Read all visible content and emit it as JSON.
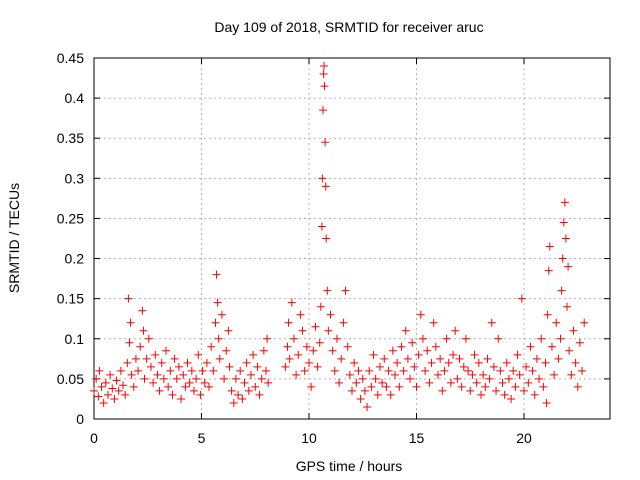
{
  "chart_data": {
    "type": "scatter",
    "title": "Day 109 of 2018, SRMTID for receiver aruc",
    "xlabel": "GPS time / hours",
    "ylabel": "SRMTID / TECUs",
    "xlim": [
      0,
      24
    ],
    "ylim": [
      0,
      0.45
    ],
    "grid": true,
    "marker": "+",
    "x_ticks": [
      0,
      5,
      10,
      15,
      20
    ],
    "x_tick_labels": [
      "0",
      "5",
      "10",
      "15",
      "20"
    ],
    "y_ticks": [
      0,
      0.05,
      0.1,
      0.15,
      0.2,
      0.25,
      0.3,
      0.35,
      0.4,
      0.45
    ],
    "y_tick_labels": [
      "0",
      "0.05",
      "0.1",
      "0.15",
      "0.2",
      "0.25",
      "0.3",
      "0.35",
      "0.4",
      "0.45"
    ],
    "series": [
      {
        "name": "SRMTID",
        "color": "#ff0000",
        "points": [
          [
            0.0,
            0.035
          ],
          [
            0.1,
            0.05
          ],
          [
            0.2,
            0.028
          ],
          [
            0.25,
            0.06
          ],
          [
            0.35,
            0.04
          ],
          [
            0.45,
            0.02
          ],
          [
            0.55,
            0.045
          ],
          [
            0.65,
            0.03
          ],
          [
            0.75,
            0.055
          ],
          [
            0.85,
            0.038
          ],
          [
            0.95,
            0.025
          ],
          [
            1.05,
            0.048
          ],
          [
            1.15,
            0.035
          ],
          [
            1.25,
            0.06
          ],
          [
            1.35,
            0.042
          ],
          [
            1.45,
            0.03
          ],
          [
            1.55,
            0.07
          ],
          [
            1.6,
            0.15
          ],
          [
            1.65,
            0.095
          ],
          [
            1.7,
            0.12
          ],
          [
            1.75,
            0.055
          ],
          [
            1.85,
            0.04
          ],
          [
            1.95,
            0.075
          ],
          [
            2.05,
            0.06
          ],
          [
            2.15,
            0.09
          ],
          [
            2.25,
            0.135
          ],
          [
            2.3,
            0.11
          ],
          [
            2.35,
            0.05
          ],
          [
            2.45,
            0.075
          ],
          [
            2.55,
            0.1
          ],
          [
            2.65,
            0.065
          ],
          [
            2.75,
            0.045
          ],
          [
            2.85,
            0.08
          ],
          [
            2.95,
            0.055
          ],
          [
            3.05,
            0.035
          ],
          [
            3.15,
            0.07
          ],
          [
            3.25,
            0.05
          ],
          [
            3.35,
            0.085
          ],
          [
            3.45,
            0.04
          ],
          [
            3.55,
            0.06
          ],
          [
            3.65,
            0.03
          ],
          [
            3.75,
            0.075
          ],
          [
            3.85,
            0.05
          ],
          [
            3.95,
            0.065
          ],
          [
            4.05,
            0.025
          ],
          [
            4.15,
            0.055
          ],
          [
            4.25,
            0.04
          ],
          [
            4.35,
            0.07
          ],
          [
            4.45,
            0.045
          ],
          [
            4.55,
            0.06
          ],
          [
            4.65,
            0.035
          ],
          [
            4.75,
            0.05
          ],
          [
            4.85,
            0.08
          ],
          [
            4.95,
            0.03
          ],
          [
            5.05,
            0.06
          ],
          [
            5.15,
            0.045
          ],
          [
            5.25,
            0.07
          ],
          [
            5.35,
            0.04
          ],
          [
            5.45,
            0.09
          ],
          [
            5.55,
            0.06
          ],
          [
            5.65,
            0.12
          ],
          [
            5.7,
            0.18
          ],
          [
            5.75,
            0.145
          ],
          [
            5.8,
            0.1
          ],
          [
            5.85,
            0.075
          ],
          [
            5.95,
            0.13
          ],
          [
            6.05,
            0.05
          ],
          [
            6.15,
            0.085
          ],
          [
            6.25,
            0.11
          ],
          [
            6.3,
            0.065
          ],
          [
            6.4,
            0.035
          ],
          [
            6.5,
            0.02
          ],
          [
            6.6,
            0.05
          ],
          [
            6.7,
            0.03
          ],
          [
            6.8,
            0.06
          ],
          [
            6.9,
            0.025
          ],
          [
            7.0,
            0.045
          ],
          [
            7.1,
            0.07
          ],
          [
            7.2,
            0.035
          ],
          [
            7.3,
            0.055
          ],
          [
            7.4,
            0.08
          ],
          [
            7.5,
            0.04
          ],
          [
            7.6,
            0.065
          ],
          [
            7.7,
            0.03
          ],
          [
            7.8,
            0.05
          ],
          [
            7.9,
            0.085
          ],
          [
            8.0,
            0.06
          ],
          [
            8.05,
            0.1
          ],
          [
            8.1,
            0.045
          ],
          [
            8.9,
            0.065
          ],
          [
            9.0,
            0.09
          ],
          [
            9.05,
            0.12
          ],
          [
            9.1,
            0.075
          ],
          [
            9.2,
            0.145
          ],
          [
            9.3,
            0.1
          ],
          [
            9.4,
            0.055
          ],
          [
            9.5,
            0.08
          ],
          [
            9.6,
            0.13
          ],
          [
            9.7,
            0.11
          ],
          [
            9.8,
            0.06
          ],
          [
            9.9,
            0.09
          ],
          [
            10.0,
            0.07
          ],
          [
            10.1,
            0.04
          ],
          [
            10.2,
            0.085
          ],
          [
            10.3,
            0.115
          ],
          [
            10.4,
            0.065
          ],
          [
            10.5,
            0.095
          ],
          [
            10.55,
            0.14
          ],
          [
            10.6,
            0.24
          ],
          [
            10.62,
            0.3
          ],
          [
            10.65,
            0.385
          ],
          [
            10.68,
            0.43
          ],
          [
            10.7,
            0.44
          ],
          [
            10.72,
            0.415
          ],
          [
            10.75,
            0.345
          ],
          [
            10.78,
            0.29
          ],
          [
            10.8,
            0.225
          ],
          [
            10.85,
            0.16
          ],
          [
            10.9,
            0.11
          ],
          [
            11.0,
            0.13
          ],
          [
            11.1,
            0.085
          ],
          [
            11.2,
            0.06
          ],
          [
            11.3,
            0.1
          ],
          [
            11.4,
            0.045
          ],
          [
            11.5,
            0.075
          ],
          [
            11.6,
            0.12
          ],
          [
            11.7,
            0.16
          ],
          [
            11.8,
            0.09
          ],
          [
            11.9,
            0.055
          ],
          [
            12.0,
            0.035
          ],
          [
            12.1,
            0.07
          ],
          [
            12.2,
            0.045
          ],
          [
            12.3,
            0.06
          ],
          [
            12.4,
            0.025
          ],
          [
            12.5,
            0.05
          ],
          [
            12.6,
            0.035
          ],
          [
            12.7,
            0.015
          ],
          [
            12.8,
            0.06
          ],
          [
            12.9,
            0.04
          ],
          [
            13.0,
            0.08
          ],
          [
            13.1,
            0.05
          ],
          [
            13.2,
            0.03
          ],
          [
            13.3,
            0.065
          ],
          [
            13.4,
            0.045
          ],
          [
            13.5,
            0.075
          ],
          [
            13.6,
            0.04
          ],
          [
            13.7,
            0.06
          ],
          [
            13.8,
            0.03
          ],
          [
            13.9,
            0.085
          ],
          [
            14.0,
            0.055
          ],
          [
            14.1,
            0.07
          ],
          [
            14.2,
            0.04
          ],
          [
            14.3,
            0.09
          ],
          [
            14.4,
            0.06
          ],
          [
            14.5,
            0.11
          ],
          [
            14.6,
            0.075
          ],
          [
            14.7,
            0.05
          ],
          [
            14.8,
            0.095
          ],
          [
            14.9,
            0.065
          ],
          [
            15.0,
            0.04
          ],
          [
            15.1,
            0.08
          ],
          [
            15.2,
            0.13
          ],
          [
            15.3,
            0.1
          ],
          [
            15.4,
            0.06
          ],
          [
            15.5,
            0.085
          ],
          [
            15.6,
            0.045
          ],
          [
            15.7,
            0.07
          ],
          [
            15.8,
            0.12
          ],
          [
            15.9,
            0.09
          ],
          [
            16.0,
            0.055
          ],
          [
            16.1,
            0.075
          ],
          [
            16.2,
            0.035
          ],
          [
            16.3,
            0.06
          ],
          [
            16.4,
            0.1
          ],
          [
            16.5,
            0.07
          ],
          [
            16.6,
            0.045
          ],
          [
            16.7,
            0.08
          ],
          [
            16.8,
            0.11
          ],
          [
            16.9,
            0.05
          ],
          [
            17.0,
            0.075
          ],
          [
            17.1,
            0.04
          ],
          [
            17.2,
            0.065
          ],
          [
            17.3,
            0.1
          ],
          [
            17.4,
            0.06
          ],
          [
            17.5,
            0.035
          ],
          [
            17.6,
            0.055
          ],
          [
            17.7,
            0.08
          ],
          [
            17.8,
            0.045
          ],
          [
            17.9,
            0.07
          ],
          [
            18.0,
            0.03
          ],
          [
            18.1,
            0.055
          ],
          [
            18.2,
            0.04
          ],
          [
            18.3,
            0.075
          ],
          [
            18.4,
            0.05
          ],
          [
            18.5,
            0.12
          ],
          [
            18.6,
            0.065
          ],
          [
            18.7,
            0.035
          ],
          [
            18.8,
            0.1
          ],
          [
            18.9,
            0.06
          ],
          [
            19.0,
            0.045
          ],
          [
            19.1,
            0.03
          ],
          [
            19.2,
            0.07
          ],
          [
            19.3,
            0.05
          ],
          [
            19.4,
            0.025
          ],
          [
            19.5,
            0.06
          ],
          [
            19.6,
            0.04
          ],
          [
            19.7,
            0.08
          ],
          [
            19.8,
            0.055
          ],
          [
            19.9,
            0.15
          ],
          [
            20.0,
            0.035
          ],
          [
            20.1,
            0.065
          ],
          [
            20.2,
            0.045
          ],
          [
            20.3,
            0.09
          ],
          [
            20.4,
            0.06
          ],
          [
            20.5,
            0.03
          ],
          [
            20.6,
            0.075
          ],
          [
            20.7,
            0.05
          ],
          [
            20.8,
            0.1
          ],
          [
            20.9,
            0.04
          ],
          [
            21.0,
            0.07
          ],
          [
            21.05,
            0.02
          ],
          [
            21.1,
            0.13
          ],
          [
            21.15,
            0.185
          ],
          [
            21.2,
            0.215
          ],
          [
            21.3,
            0.09
          ],
          [
            21.4,
            0.055
          ],
          [
            21.5,
            0.12
          ],
          [
            21.6,
            0.075
          ],
          [
            21.7,
            0.1
          ],
          [
            21.75,
            0.16
          ],
          [
            21.8,
            0.2
          ],
          [
            21.85,
            0.245
          ],
          [
            21.9,
            0.27
          ],
          [
            21.95,
            0.225
          ],
          [
            22.0,
            0.14
          ],
          [
            22.05,
            0.19
          ],
          [
            22.1,
            0.085
          ],
          [
            22.2,
            0.055
          ],
          [
            22.3,
            0.11
          ],
          [
            22.4,
            0.07
          ],
          [
            22.5,
            0.04
          ],
          [
            22.6,
            0.095
          ],
          [
            22.7,
            0.06
          ],
          [
            22.8,
            0.12
          ]
        ]
      }
    ]
  }
}
